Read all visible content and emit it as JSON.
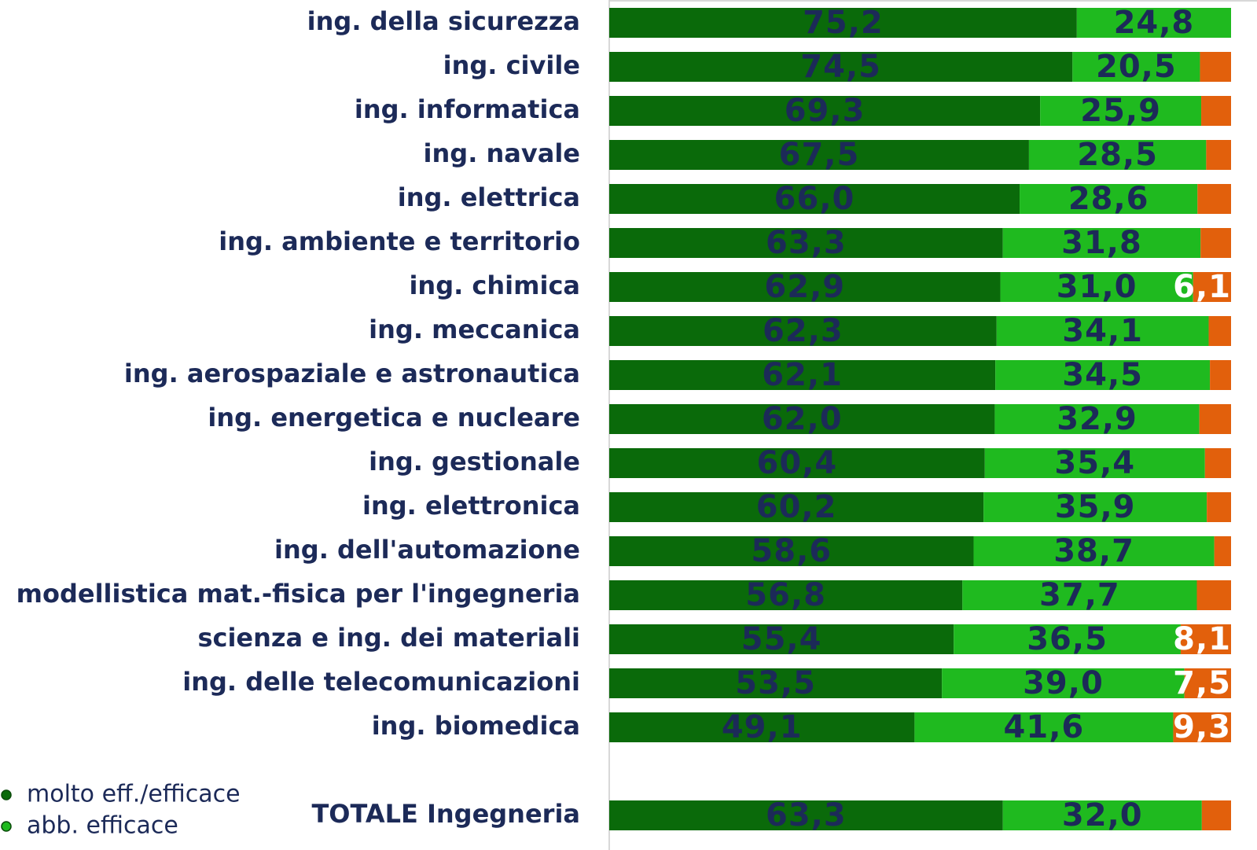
{
  "chart_data": {
    "type": "stacked-bar-horizontal",
    "categories": [
      "ing. della sicurezza",
      "ing. civile",
      "ing. informatica",
      "ing. navale",
      "ing. elettrica",
      "ing. ambiente e territorio",
      "ing. chimica",
      "ing. meccanica",
      "ing. aerospaziale e astronautica",
      "ing. energetica e nucleare",
      "ing. gestionale",
      "ing. elettronica",
      "ing. dell'automazione",
      "modellistica mat.-fisica per l'ingegneria",
      "scienza e ing. dei materiali",
      "ing. delle telecomunicazioni",
      "ing. biomedica",
      null,
      "TOTALE Ingegneria"
    ],
    "xlim": [
      0,
      100
    ],
    "series": [
      {
        "name": "molto eff./efficace",
        "color": "#0a6a0a",
        "values": [
          75.2,
          74.5,
          69.3,
          67.5,
          66.0,
          63.3,
          62.9,
          62.3,
          62.1,
          62.0,
          60.4,
          60.2,
          58.6,
          56.8,
          55.4,
          53.5,
          49.1,
          null,
          63.3
        ],
        "value_labels": [
          "75,2",
          "74,5",
          "69,3",
          "67,5",
          "66,0",
          "63,3",
          "62,9",
          "62,3",
          "62,1",
          "62,0",
          "60,4",
          "60,2",
          "58,6",
          "56,8",
          "55,4",
          "53,5",
          "49,1",
          null,
          "63,3"
        ]
      },
      {
        "name": "abb. efficace",
        "color": "#1fba1f",
        "values": [
          24.8,
          20.5,
          25.9,
          28.5,
          28.6,
          31.8,
          31.0,
          34.1,
          34.5,
          32.9,
          35.4,
          35.9,
          38.7,
          37.7,
          36.5,
          39.0,
          41.6,
          null,
          32.0
        ],
        "value_labels": [
          "24,8",
          "20,5",
          "25,9",
          "28,5",
          "28,6",
          "31,8",
          "31,0",
          "34,1",
          "34,5",
          "32,9",
          "35,4",
          "35,9",
          "38,7",
          "37,7",
          "36,5",
          "39,0",
          "41,6",
          null,
          "32,0"
        ]
      },
      {
        "color": "#e2600c",
        "values": [
          0.0,
          5.0,
          4.8,
          4.0,
          5.4,
          4.9,
          6.1,
          3.6,
          3.4,
          5.1,
          4.2,
          3.9,
          2.7,
          5.5,
          8.1,
          7.5,
          9.3,
          null,
          4.7
        ],
        "value_labels": [
          null,
          null,
          null,
          null,
          null,
          null,
          "6,1",
          null,
          null,
          null,
          null,
          null,
          null,
          null,
          "8,1",
          "7,5",
          "9,3",
          null,
          null
        ]
      }
    ]
  }
}
